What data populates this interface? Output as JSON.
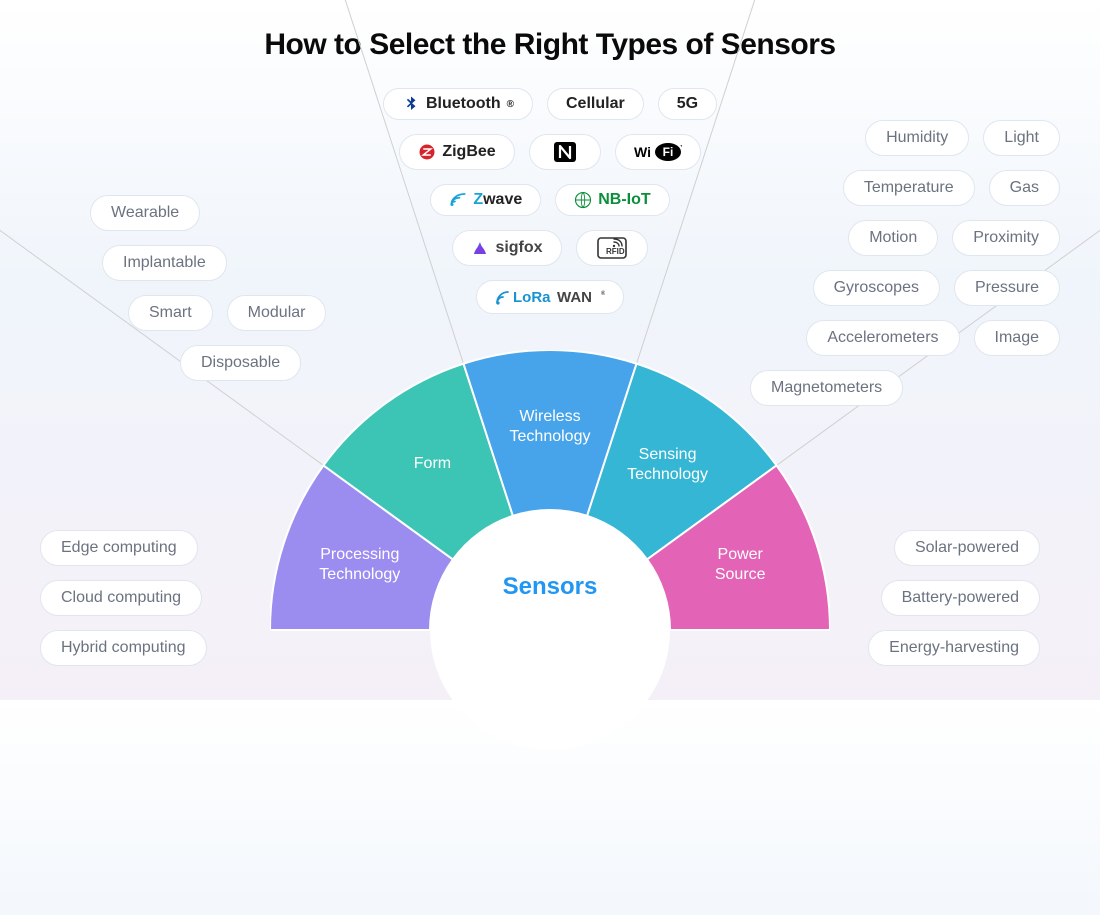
{
  "type": "infographic",
  "title": "How to Select the Right Types of Sensors",
  "center_label": "Sensors",
  "background_gradient": [
    "#ffffff",
    "#f0f5fb",
    "#f5f0f8"
  ],
  "pill_style": {
    "bg": "#ffffff",
    "border": "#e0e6ef",
    "text_color": "#6b7280",
    "radius": 999,
    "fontsize": 16
  },
  "title_style": {
    "fontsize": 30,
    "weight": 800,
    "color": "#0a0a0a"
  },
  "wheel": {
    "outer_radius": 280,
    "inner_radius": 120,
    "center_color": "#ffffff",
    "center_label_color": "#2196f3",
    "wedges": [
      {
        "id": "processing",
        "label_lines": [
          "Processing",
          "Technology"
        ],
        "color": "#9b8cf0",
        "angle_start": 180,
        "angle_end": 216
      },
      {
        "id": "form",
        "label_lines": [
          "Form"
        ],
        "color": "#3cc4b5",
        "angle_start": 216,
        "angle_end": 252
      },
      {
        "id": "wireless",
        "label_lines": [
          "Wireless",
          "Technology"
        ],
        "color": "#47a4ea",
        "angle_start": 252,
        "angle_end": 288
      },
      {
        "id": "sensing",
        "label_lines": [
          "Sensing",
          "Technology"
        ],
        "color": "#34b6d4",
        "angle_start": 288,
        "angle_end": 324
      },
      {
        "id": "power",
        "label_lines": [
          "Power",
          "Source"
        ],
        "color": "#e363b6",
        "angle_start": 324,
        "angle_end": 360
      }
    ]
  },
  "groups": {
    "wireless": {
      "items": [
        {
          "label": "Bluetooth",
          "icon": "bluetooth",
          "icon_color": "#0a3d91"
        },
        {
          "label": "Cellular"
        },
        {
          "label": "5G"
        },
        {
          "label": "ZigBee",
          "icon": "zigbee",
          "icon_color": "#d6252a"
        },
        {
          "label": "NFC",
          "icon": "nfc",
          "icon_color": "#000000",
          "label_hidden": true
        },
        {
          "label": "WiFi",
          "icon": "wifi",
          "icon_color": "#000000",
          "label_hidden": true
        },
        {
          "label": "Z-Wave",
          "icon": "zwave",
          "icon_color": "#17a4d6",
          "label_override": "wave"
        },
        {
          "label": "NB-IoT",
          "icon": "nbiot",
          "icon_color": "#0b8f3a"
        },
        {
          "label": "sigfox",
          "icon": "sigfox",
          "icon_color": "#7a3fe3"
        },
        {
          "label": "RFID",
          "icon": "rfid",
          "icon_color": "#333333",
          "label_hidden": true
        },
        {
          "label": "LoRaWAN",
          "icon": "lorawan",
          "icon_color": "#1893d1",
          "label_hidden": true
        }
      ]
    },
    "form": {
      "items": [
        {
          "label": "Wearable"
        },
        {
          "label": "Implantable"
        },
        {
          "label": "Smart"
        },
        {
          "label": "Modular"
        },
        {
          "label": "Disposable"
        }
      ]
    },
    "sensing": {
      "items": [
        {
          "label": "Humidity"
        },
        {
          "label": "Light"
        },
        {
          "label": "Temperature"
        },
        {
          "label": "Gas"
        },
        {
          "label": "Motion"
        },
        {
          "label": "Proximity"
        },
        {
          "label": "Gyroscopes"
        },
        {
          "label": "Pressure"
        },
        {
          "label": "Accelerometers"
        },
        {
          "label": "Image"
        },
        {
          "label": "Magnetometers"
        }
      ]
    },
    "processing": {
      "items": [
        {
          "label": "Edge computing"
        },
        {
          "label": "Cloud computing"
        },
        {
          "label": "Hybrid computing"
        }
      ]
    },
    "power": {
      "items": [
        {
          "label": "Solar-powered"
        },
        {
          "label": "Battery-powered"
        },
        {
          "label": "Energy-harvesting"
        }
      ]
    }
  }
}
